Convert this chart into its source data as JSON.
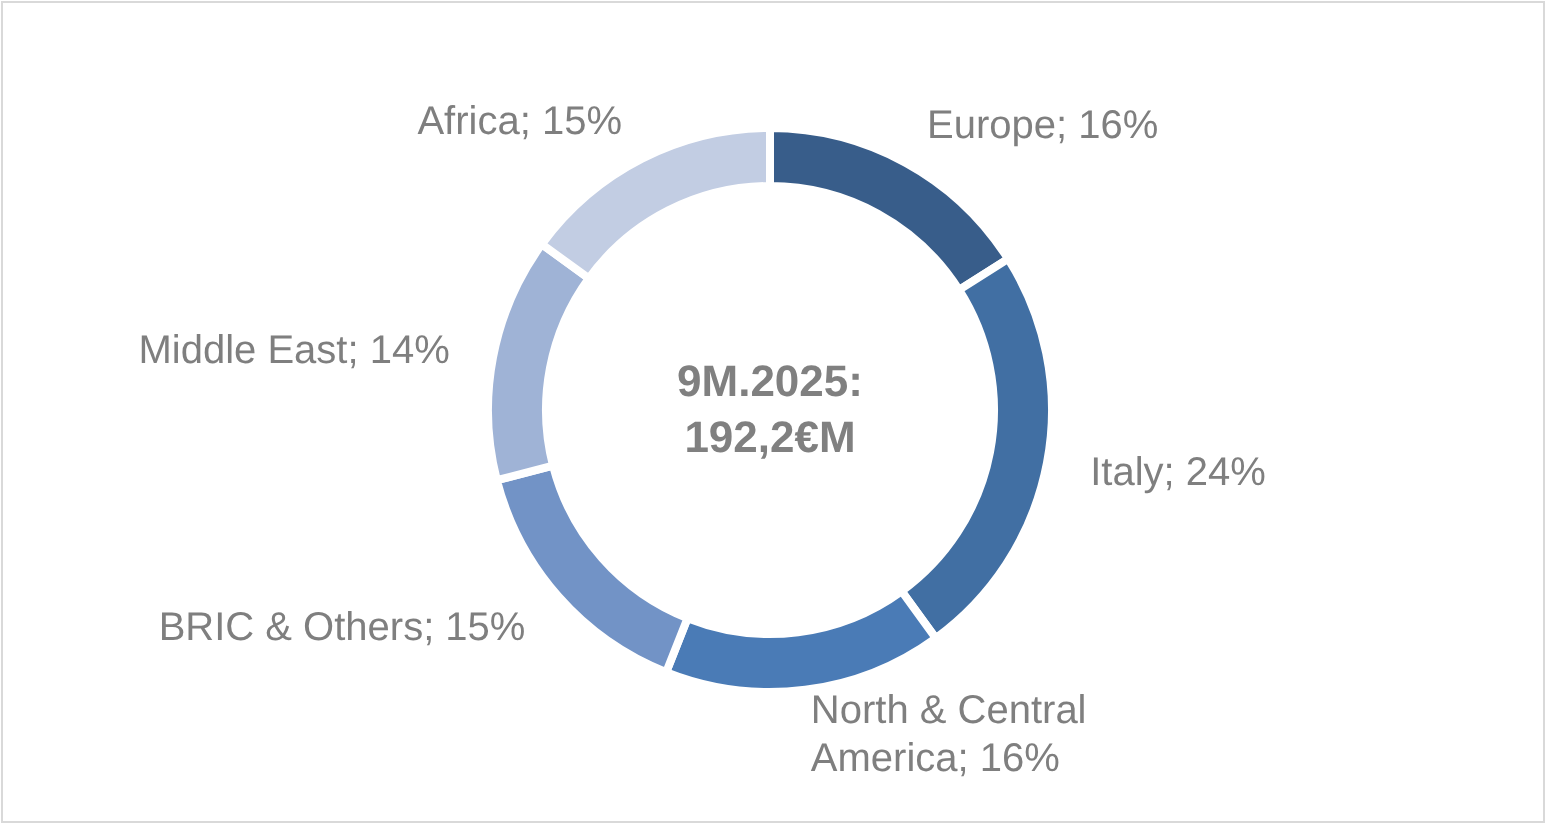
{
  "chart_data": {
    "type": "donut",
    "categories": [
      "Europe",
      "Italy",
      "North & Central America",
      "BRIC & Others",
      "Middle East",
      "Africa"
    ],
    "values": [
      16,
      24,
      16,
      15,
      14,
      15
    ],
    "value_labels": [
      "16%",
      "24%",
      "16%",
      "15%",
      "14%",
      "15%"
    ],
    "colors": [
      "#385d8a",
      "#416fa3",
      "#4a7bb6",
      "#7293c6",
      "#9fb3d6",
      "#c2cde3"
    ],
    "annotations": [
      "9M.2025: 192,2€M"
    ],
    "legend": false
  }
}
